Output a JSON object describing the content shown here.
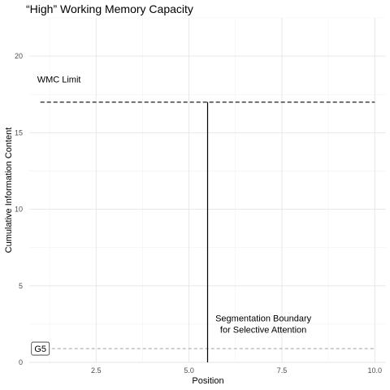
{
  "chart_data": {
    "type": "line",
    "title": "“High” Working Memory Capacity",
    "xlabel": "Position",
    "ylabel": "Cumulative Information Content",
    "xlim": [
      0.7,
      10.3
    ],
    "ylim": [
      0,
      22.5
    ],
    "x_ticks": [
      2.5,
      5.0,
      7.5,
      10.0
    ],
    "x_tick_labels": [
      "2.5",
      "5.0",
      "7.5",
      "10.0"
    ],
    "y_ticks": [
      0,
      5,
      10,
      15,
      20
    ],
    "y_tick_labels": [
      "0",
      "5",
      "10",
      "15",
      "20"
    ],
    "grid": true,
    "reference_lines": [
      {
        "kind": "hline",
        "y": 17,
        "x_from": 1,
        "x_to": 10,
        "style": "dashed",
        "color": "#333333",
        "label": "WMC Limit",
        "label_x": 1.5,
        "label_y": 18.5
      },
      {
        "kind": "hline",
        "y": 0.9,
        "x_from": 1,
        "x_to": 10,
        "style": "dashed",
        "color": "#aaaaaa"
      }
    ],
    "segments": [
      {
        "x": [
          5.5,
          5.5
        ],
        "y": [
          0,
          17
        ],
        "color": "#000000"
      }
    ],
    "annotations": [
      {
        "lines": [
          "Segmentation Boundary",
          "for Selective Attention"
        ],
        "x": 7.0,
        "y": 2.3
      }
    ],
    "point_labels": [
      {
        "text": "G5",
        "x": 1.0,
        "y": 0.9,
        "boxed": true
      }
    ]
  }
}
